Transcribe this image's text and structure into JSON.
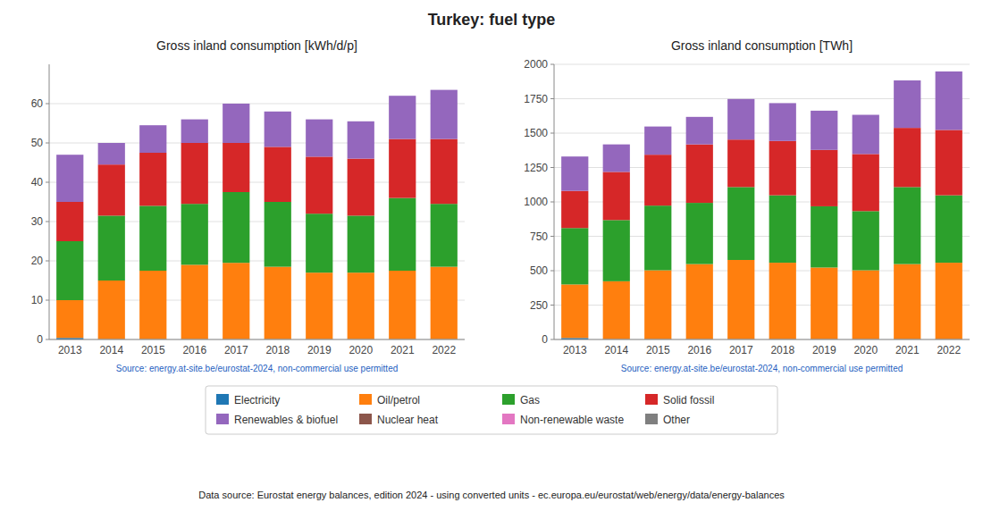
{
  "title": "Turkey: fuel type",
  "annotations": [
    "Data source: Eurostat energy balances, edition 2024 - using converted units - ec.europa.eu/eurostat/web/energy/data/energy-balances"
  ],
  "legend": "bottom",
  "chart_data": [
    {
      "type": "bar",
      "stacked": true,
      "grid": true,
      "title": "Gross inland consumption [kWh/d/p]",
      "annotations": [
        "Source: energy.at-site.be/eurostat-2024, non-commercial use permitted"
      ],
      "categories": [
        "2013",
        "2014",
        "2015",
        "2016",
        "2017",
        "2018",
        "2019",
        "2020",
        "2021",
        "2022"
      ],
      "series": [
        {
          "name": "Electricity",
          "color": "#1f77b4",
          "values": [
            0.4,
            0.1,
            0.1,
            0.1,
            0.1,
            0.1,
            0.1,
            0.1,
            0.1,
            0.1
          ]
        },
        {
          "name": "Oil/petrol",
          "color": "#ff7f0e",
          "values": [
            9.6,
            14.9,
            17.4,
            18.9,
            19.4,
            18.4,
            16.9,
            16.9,
            17.4,
            18.4
          ]
        },
        {
          "name": "Gas",
          "color": "#2ca02c",
          "values": [
            15.0,
            16.5,
            16.5,
            15.5,
            18.0,
            16.5,
            15.0,
            14.5,
            18.5,
            16.0
          ]
        },
        {
          "name": "Solid fossil",
          "color": "#d62728",
          "values": [
            10.0,
            13.0,
            13.5,
            15.5,
            12.5,
            14.0,
            14.5,
            14.5,
            15.0,
            16.5
          ]
        },
        {
          "name": "Renewables & biofuel",
          "color": "#9467bd",
          "values": [
            12.0,
            5.5,
            7.0,
            6.0,
            10.0,
            9.0,
            9.5,
            9.5,
            11.0,
            12.5
          ]
        },
        {
          "name": "Nuclear heat",
          "color": "#8c564b",
          "values": [
            0.0,
            0.0,
            0.0,
            0.0,
            0.0,
            0.0,
            0.0,
            0.0,
            0.0,
            0.0
          ]
        },
        {
          "name": "Non-renewable waste",
          "color": "#e377c2",
          "values": [
            0.0,
            0.0,
            0.0,
            0.0,
            0.0,
            0.0,
            0.0,
            0.0,
            0.0,
            0.0
          ]
        },
        {
          "name": "Other",
          "color": "#7f7f7f",
          "values": [
            0.0,
            0.0,
            0.0,
            0.0,
            0.0,
            0.0,
            0.0,
            0.0,
            0.0,
            0.0
          ]
        }
      ],
      "ylim": [
        0,
        70
      ],
      "yticks": [
        0,
        10,
        20,
        30,
        40,
        50,
        60
      ]
    },
    {
      "type": "bar",
      "stacked": true,
      "grid": true,
      "title": "Gross inland consumption [TWh]",
      "annotations": [
        "Source: energy.at-site.be/eurostat-2024, non-commercial use permitted"
      ],
      "categories": [
        "2013",
        "2014",
        "2015",
        "2016",
        "2017",
        "2018",
        "2019",
        "2020",
        "2021",
        "2022"
      ],
      "series": [
        {
          "name": "Electricity",
          "color": "#1f77b4",
          "values": [
            11,
            3,
            3,
            3,
            3,
            3,
            3,
            3,
            3,
            3
          ]
        },
        {
          "name": "Oil/petrol",
          "color": "#ff7f0e",
          "values": [
            389,
            420,
            500,
            545,
            575,
            555,
            520,
            500,
            545,
            555
          ]
        },
        {
          "name": "Gas",
          "color": "#2ca02c",
          "values": [
            410,
            445,
            470,
            445,
            530,
            490,
            445,
            430,
            560,
            490
          ]
        },
        {
          "name": "Solid fossil",
          "color": "#d62728",
          "values": [
            270,
            350,
            370,
            425,
            345,
            395,
            410,
            415,
            430,
            475
          ]
        },
        {
          "name": "Renewables & biofuel",
          "color": "#9467bd",
          "values": [
            250,
            200,
            205,
            200,
            295,
            275,
            285,
            285,
            345,
            425
          ]
        },
        {
          "name": "Nuclear heat",
          "color": "#8c564b",
          "values": [
            0,
            0,
            0,
            0,
            0,
            0,
            0,
            0,
            0,
            0
          ]
        },
        {
          "name": "Non-renewable waste",
          "color": "#e377c2",
          "values": [
            0,
            0,
            0,
            0,
            0,
            0,
            0,
            0,
            0,
            0
          ]
        },
        {
          "name": "Other",
          "color": "#7f7f7f",
          "values": [
            0,
            0,
            0,
            0,
            0,
            0,
            0,
            0,
            0,
            0
          ]
        }
      ],
      "ylim": [
        0,
        2000
      ],
      "yticks": [
        0,
        250,
        500,
        750,
        1000,
        1250,
        1500,
        1750,
        2000
      ]
    }
  ]
}
